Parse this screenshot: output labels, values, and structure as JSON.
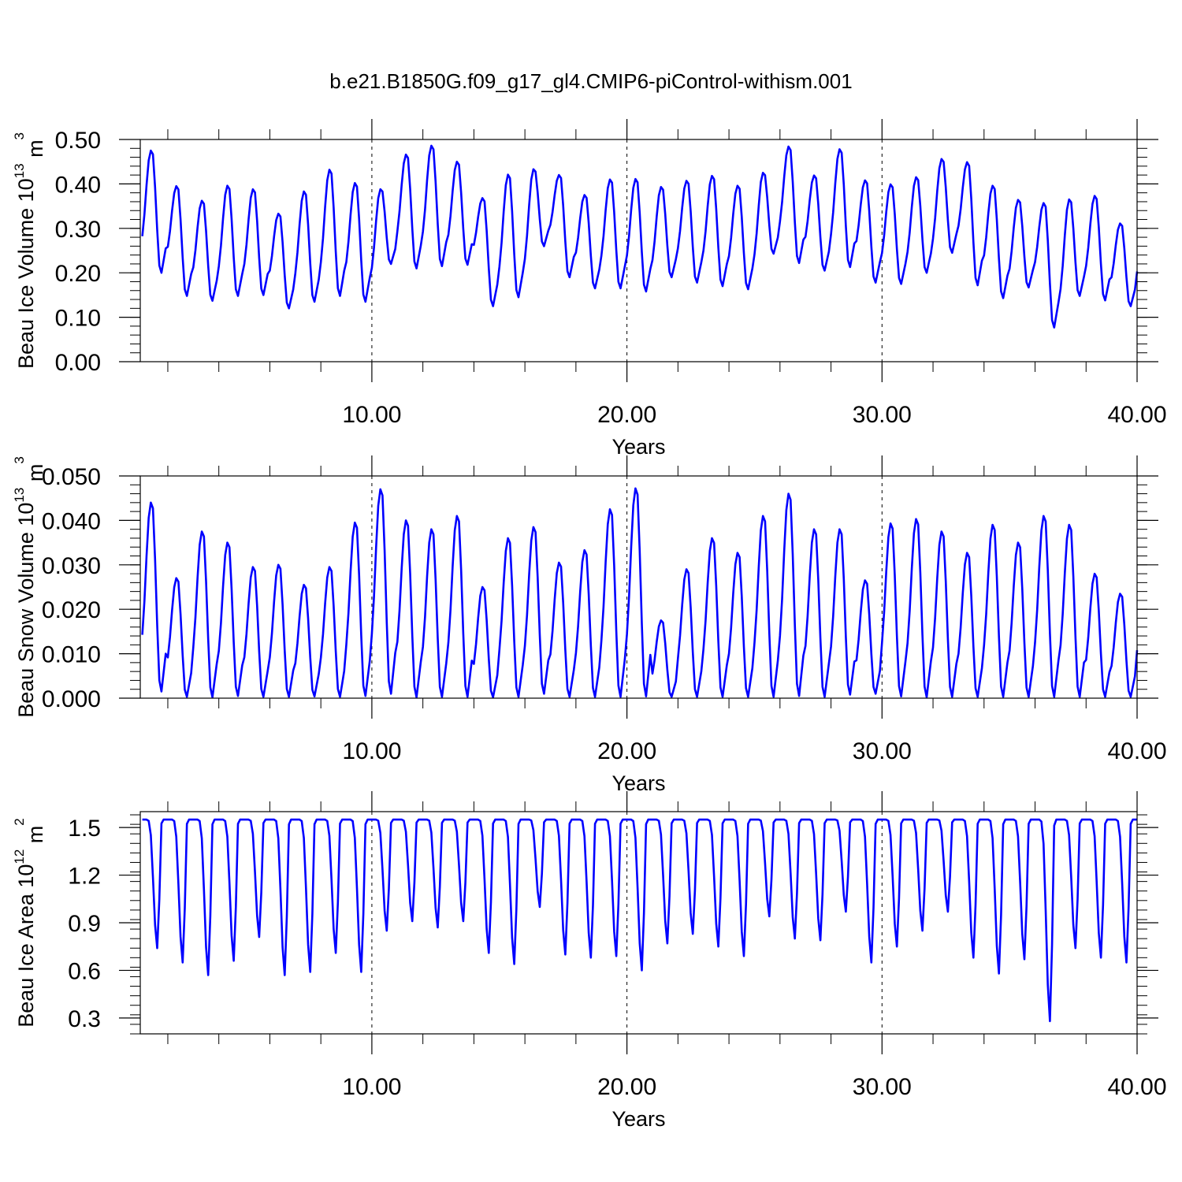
{
  "figure_title": "b.e21.B1850G.f09_g17_gl4.CMIP6-piControl-withism.001",
  "colors": {
    "series": "#0000ff",
    "axis": "#000000",
    "grid": "#000000"
  },
  "chart_data": [
    {
      "type": "line",
      "xlabel": "Years",
      "ylabel": {
        "main": "Beau Ice Volume 10",
        "exp": "13",
        "unit": " m",
        "unit_exp": "3"
      },
      "xlim": [
        0.92,
        40.0
      ],
      "ylim": [
        0.0,
        0.5
      ],
      "yticks": [
        0.0,
        0.1,
        0.2,
        0.3,
        0.4,
        0.5
      ],
      "ytick_labels": [
        "0.00",
        "0.10",
        "0.20",
        "0.30",
        "0.40",
        "0.50"
      ],
      "xticks": [
        10,
        20,
        30,
        40
      ],
      "xtick_labels": [
        "10.00",
        "20.00",
        "30.00",
        "40.00"
      ],
      "grid": "vertical dashed at major x ticks",
      "series": [
        {
          "start_year": 1.0,
          "peaks": [
            0.475,
            0.395,
            0.362,
            0.396,
            0.388,
            0.333,
            0.383,
            0.432,
            0.402,
            0.388,
            0.466,
            0.486,
            0.45,
            0.368,
            0.421,
            0.433,
            0.42,
            0.375,
            0.41,
            0.411,
            0.393,
            0.407,
            0.418,
            0.396,
            0.425,
            0.484,
            0.419,
            0.478,
            0.408,
            0.399,
            0.415,
            0.456,
            0.449,
            0.396,
            0.364,
            0.357,
            0.365,
            0.373,
            0.311,
            0.385
          ],
          "troughs": [
            0.2,
            0.148,
            0.137,
            0.148,
            0.15,
            0.12,
            0.135,
            0.148,
            0.135,
            0.22,
            0.21,
            0.215,
            0.218,
            0.125,
            0.145,
            0.26,
            0.19,
            0.165,
            0.165,
            0.158,
            0.19,
            0.178,
            0.17,
            0.163,
            0.243,
            0.222,
            0.205,
            0.213,
            0.178,
            0.175,
            0.2,
            0.245,
            0.172,
            0.143,
            0.167,
            0.077,
            0.148,
            0.138,
            0.125,
            0.105
          ]
        }
      ]
    },
    {
      "type": "line",
      "xlabel": "Years",
      "ylabel": {
        "main": "Beau Snow Volume 10",
        "exp": "13",
        "unit": " m",
        "unit_exp": "3"
      },
      "xlim": [
        0.92,
        40.0
      ],
      "ylim": [
        0.0,
        0.05
      ],
      "yticks": [
        0.0,
        0.01,
        0.02,
        0.03,
        0.04,
        0.05
      ],
      "ytick_labels": [
        "0.000",
        "0.010",
        "0.020",
        "0.030",
        "0.040",
        "0.050"
      ],
      "xticks": [
        10,
        20,
        30,
        40
      ],
      "xtick_labels": [
        "10.00",
        "20.00",
        "30.00",
        "40.00"
      ],
      "grid": "vertical dashed at major x ticks",
      "series": [
        {
          "start_year": 1.0,
          "peaks": [
            0.044,
            0.027,
            0.0375,
            0.035,
            0.0295,
            0.03,
            0.0255,
            0.0295,
            0.0395,
            0.047,
            0.04,
            0.038,
            0.041,
            0.025,
            0.036,
            0.0385,
            0.0305,
            0.0333,
            0.0425,
            0.0472,
            0.0175,
            0.029,
            0.036,
            0.0327,
            0.041,
            0.046,
            0.038,
            0.038,
            0.0265,
            0.0393,
            0.0403,
            0.0375,
            0.0327,
            0.039,
            0.035,
            0.041,
            0.039,
            0.028,
            0.0235,
            0.0353
          ],
          "troughs": [
            0.0015,
            0.0003,
            0.0002,
            0.0005,
            0.0003,
            0.0003,
            0.0004,
            0.0003,
            0.0005,
            0.001,
            0.0002,
            0.0003,
            0.0003,
            0.0002,
            0.0003,
            0.001,
            0.0003,
            0.0003,
            0.0003,
            0.0004,
            0.0003,
            0.0003,
            0.0003,
            0.0003,
            0.0003,
            0.0005,
            0.0003,
            0.0008,
            0.001,
            0.0004,
            0.0002,
            0.0003,
            0.0003,
            0.0003,
            0.0003,
            0.0003,
            0.0003,
            0.0003,
            0.0003,
            0.0003
          ]
        }
      ]
    },
    {
      "type": "line",
      "xlabel": "Years",
      "ylabel": {
        "main": "Beau Ice Area 10",
        "exp": "12",
        "unit": " m",
        "unit_exp": "2"
      },
      "xlim": [
        0.92,
        40.0
      ],
      "ylim": [
        0.2,
        1.6
      ],
      "yticks": [
        0.3,
        0.6,
        0.9,
        1.2,
        1.5
      ],
      "ytick_labels": [
        "0.3",
        "0.6",
        "0.9",
        "1.2",
        "1.5"
      ],
      "xticks": [
        10,
        20,
        30,
        40
      ],
      "xtick_labels": [
        "10.00",
        "20.00",
        "30.00",
        "40.00"
      ],
      "grid": "vertical dashed at major x ticks",
      "series": [
        {
          "start_year": 1.0,
          "peaks": [
            1.55,
            1.55,
            1.55,
            1.55,
            1.55,
            1.55,
            1.55,
            1.55,
            1.55,
            1.55,
            1.55,
            1.55,
            1.55,
            1.55,
            1.55,
            1.55,
            1.55,
            1.55,
            1.55,
            1.55,
            1.55,
            1.55,
            1.55,
            1.55,
            1.55,
            1.55,
            1.55,
            1.55,
            1.55,
            1.55,
            1.55,
            1.55,
            1.55,
            1.55,
            1.55,
            1.55,
            1.55,
            1.55,
            1.55,
            1.55
          ],
          "troughs": [
            0.74,
            0.65,
            0.57,
            0.66,
            0.81,
            0.57,
            0.59,
            0.71,
            0.59,
            0.85,
            0.91,
            0.87,
            0.91,
            0.71,
            0.64,
            1.0,
            0.7,
            0.68,
            0.69,
            0.6,
            0.77,
            0.83,
            0.75,
            0.69,
            0.94,
            0.8,
            0.79,
            0.97,
            0.65,
            0.75,
            0.85,
            0.97,
            0.68,
            0.58,
            0.67,
            0.28,
            0.74,
            0.68,
            0.65,
            0.5
          ]
        }
      ]
    }
  ]
}
